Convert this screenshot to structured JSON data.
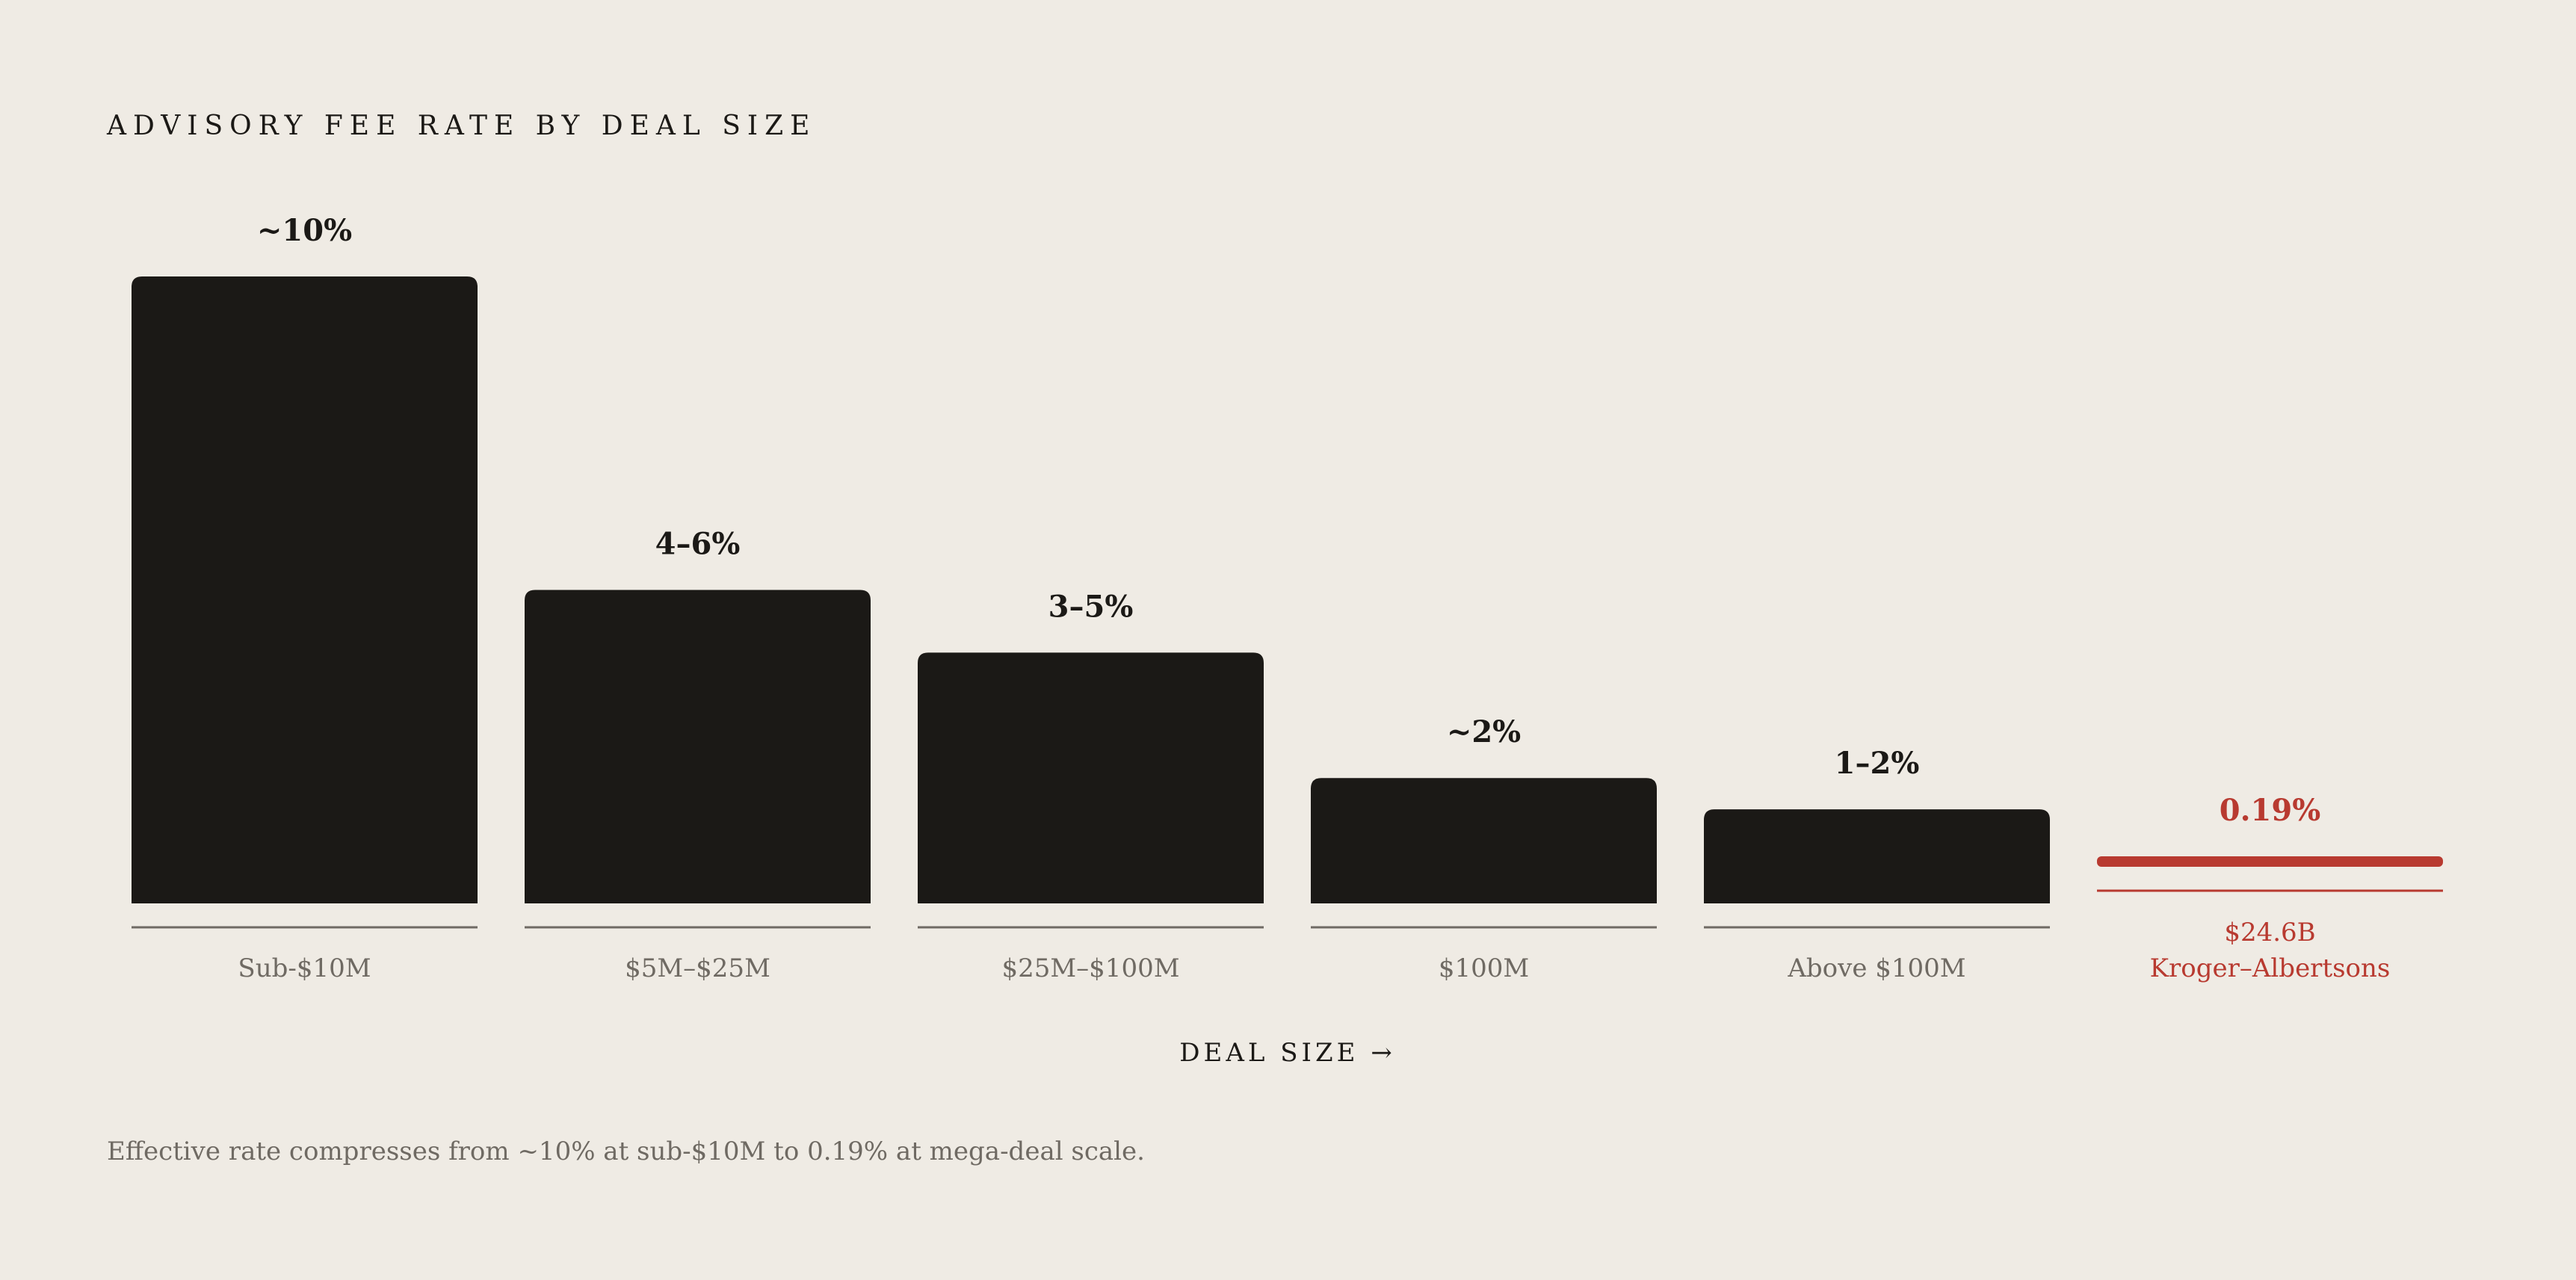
{
  "chart_data": {
    "type": "bar",
    "title": "ADVISORY FEE RATE BY DEAL SIZE",
    "xlabel": "DEAL SIZE →",
    "ylabel": "",
    "ylim": [
      0,
      10
    ],
    "grid": false,
    "legend": "none",
    "categories": [
      [
        "Sub-$10M"
      ],
      [
        "$5M–$25M"
      ],
      [
        "$25M–$100M"
      ],
      [
        "$100M"
      ],
      [
        "Above $100M"
      ],
      [
        "$24.6B",
        "Kroger–Albertsons"
      ]
    ],
    "values": [
      10,
      5,
      4,
      2,
      1.5,
      0.19
    ],
    "value_labels": [
      "~10%",
      "4–6%",
      "3–5%",
      "~2%",
      "1–2%",
      "0.19%"
    ],
    "highlight_index": 5,
    "caption": "Effective rate compresses from ~10% at sub-$10M to 0.19% at mega-deal scale.",
    "colors": {
      "background": "#efebe4",
      "bar": "#1b1916",
      "highlight": "#b83a30",
      "baseline": "#6f6a63",
      "muted_text": "#6f6a63"
    }
  }
}
